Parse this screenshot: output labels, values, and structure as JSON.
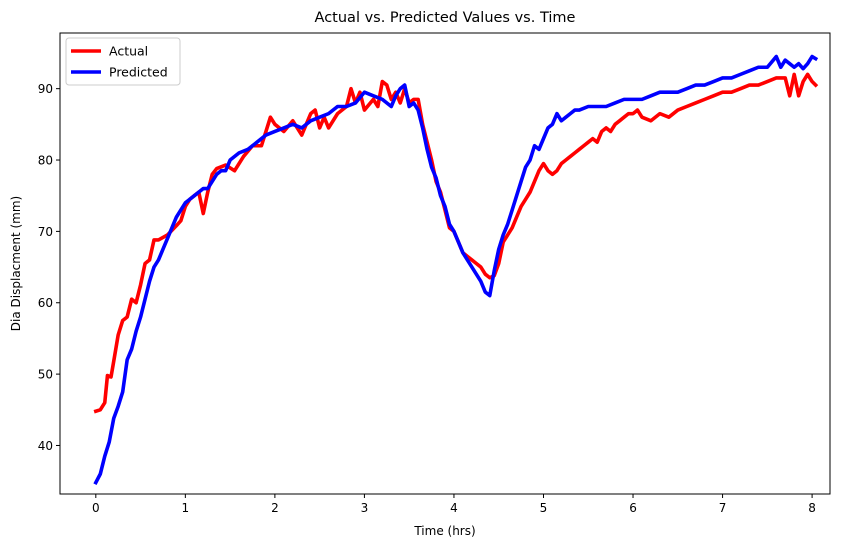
{
  "chart_data": {
    "type": "line",
    "title": "Actual vs. Predicted Values vs. Time",
    "xlabel": "Time (hrs)",
    "ylabel": "Dia Displacment (mm)",
    "xlim": [
      -0.4,
      8.2
    ],
    "ylim": [
      33.2,
      97.8
    ],
    "xticks": [
      0,
      1,
      2,
      3,
      4,
      5,
      6,
      7,
      8
    ],
    "xtick_labels": [
      "0",
      "1",
      "2",
      "3",
      "4",
      "5",
      "6",
      "7",
      "8"
    ],
    "yticks": [
      40,
      50,
      60,
      70,
      80,
      90
    ],
    "ytick_labels": [
      "40",
      "50",
      "60",
      "70",
      "80",
      "90"
    ],
    "grid": false,
    "legend_position": "top-left",
    "series": [
      {
        "name": "Actual",
        "color": "#ff0000",
        "x": [
          0,
          0.05,
          0.1,
          0.13,
          0.17,
          0.2,
          0.25,
          0.3,
          0.35,
          0.4,
          0.45,
          0.5,
          0.55,
          0.6,
          0.65,
          0.7,
          0.8,
          0.9,
          0.95,
          1.0,
          1.05,
          1.1,
          1.15,
          1.2,
          1.25,
          1.3,
          1.35,
          1.45,
          1.55,
          1.65,
          1.75,
          1.85,
          1.95,
          2.0,
          2.1,
          2.2,
          2.3,
          2.4,
          2.45,
          2.5,
          2.55,
          2.6,
          2.7,
          2.8,
          2.85,
          2.9,
          2.95,
          3.0,
          3.1,
          3.15,
          3.2,
          3.25,
          3.3,
          3.35,
          3.4,
          3.45,
          3.5,
          3.55,
          3.6,
          3.65,
          3.7,
          3.75,
          3.8,
          3.85,
          3.9,
          3.95,
          4.0,
          4.05,
          4.1,
          4.15,
          4.2,
          4.25,
          4.3,
          4.35,
          4.4,
          4.45,
          4.5,
          4.55,
          4.6,
          4.65,
          4.7,
          4.75,
          4.8,
          4.85,
          4.9,
          4.95,
          5.0,
          5.05,
          5.1,
          5.15,
          5.2,
          5.25,
          5.3,
          5.35,
          5.4,
          5.45,
          5.5,
          5.55,
          5.6,
          5.65,
          5.7,
          5.75,
          5.8,
          5.85,
          5.9,
          5.95,
          6.0,
          6.05,
          6.1,
          6.2,
          6.3,
          6.4,
          6.5,
          6.6,
          6.7,
          6.8,
          6.9,
          7.0,
          7.1,
          7.2,
          7.3,
          7.4,
          7.5,
          7.6,
          7.7,
          7.75,
          7.8,
          7.85,
          7.9,
          7.95,
          8.0,
          8.04
        ],
        "y": [
          44.8,
          45.0,
          46.0,
          49.8,
          49.6,
          51.8,
          55.5,
          57.5,
          58.0,
          60.5,
          60.0,
          62.5,
          65.5,
          66.0,
          68.8,
          68.8,
          69.5,
          70.8,
          71.5,
          73.5,
          74.5,
          75.0,
          75.5,
          72.5,
          75.5,
          78.0,
          78.8,
          79.3,
          78.5,
          80.5,
          82.0,
          82.0,
          86.0,
          85.0,
          84.0,
          85.5,
          83.5,
          86.5,
          87.0,
          84.5,
          86.0,
          84.5,
          86.5,
          87.5,
          90.0,
          88.0,
          89.5,
          87.0,
          88.5,
          87.5,
          91.0,
          90.5,
          88.5,
          89.5,
          88.0,
          90.0,
          88.0,
          88.5,
          88.5,
          85.0,
          82.5,
          80.0,
          77.0,
          75.5,
          73.0,
          70.5,
          70.0,
          68.5,
          67.0,
          66.5,
          66.0,
          65.5,
          65.0,
          64.0,
          63.5,
          63.8,
          65.5,
          68.5,
          69.5,
          70.5,
          72.0,
          73.5,
          74.5,
          75.5,
          77.0,
          78.5,
          79.5,
          78.5,
          78.0,
          78.5,
          79.5,
          80.0,
          80.5,
          81.0,
          81.5,
          82.0,
          82.5,
          83.0,
          82.5,
          84.0,
          84.5,
          84.0,
          85.0,
          85.5,
          86.0,
          86.5,
          86.5,
          87.0,
          86.0,
          85.5,
          86.5,
          86.0,
          87.0,
          87.5,
          88.0,
          88.5,
          89.0,
          89.5,
          89.5,
          90.0,
          90.5,
          90.5,
          91.0,
          91.5,
          91.5,
          89.0,
          92.0,
          89.0,
          91.0,
          92.0,
          91.0,
          90.5
        ]
      },
      {
        "name": "Predicted",
        "color": "#0000ff",
        "x": [
          0,
          0.05,
          0.1,
          0.15,
          0.2,
          0.25,
          0.3,
          0.35,
          0.4,
          0.45,
          0.5,
          0.55,
          0.6,
          0.65,
          0.7,
          0.75,
          0.8,
          0.85,
          0.9,
          0.95,
          1.0,
          1.05,
          1.1,
          1.15,
          1.2,
          1.25,
          1.3,
          1.35,
          1.4,
          1.45,
          1.5,
          1.6,
          1.7,
          1.8,
          1.9,
          2.0,
          2.1,
          2.2,
          2.3,
          2.4,
          2.5,
          2.6,
          2.7,
          2.8,
          2.9,
          3.0,
          3.1,
          3.2,
          3.3,
          3.35,
          3.4,
          3.45,
          3.5,
          3.55,
          3.6,
          3.65,
          3.7,
          3.75,
          3.8,
          3.85,
          3.9,
          3.95,
          4.0,
          4.05,
          4.1,
          4.15,
          4.2,
          4.25,
          4.3,
          4.35,
          4.4,
          4.45,
          4.5,
          4.55,
          4.6,
          4.65,
          4.7,
          4.75,
          4.8,
          4.85,
          4.9,
          4.95,
          5.0,
          5.05,
          5.1,
          5.15,
          5.2,
          5.25,
          5.3,
          5.35,
          5.4,
          5.5,
          5.6,
          5.7,
          5.8,
          5.9,
          6.0,
          6.1,
          6.2,
          6.3,
          6.4,
          6.5,
          6.6,
          6.7,
          6.8,
          6.9,
          7.0,
          7.1,
          7.2,
          7.3,
          7.4,
          7.5,
          7.6,
          7.65,
          7.7,
          7.75,
          7.8,
          7.85,
          7.9,
          7.95,
          8.0,
          8.04
        ],
        "y": [
          34.8,
          36.0,
          38.5,
          40.5,
          43.8,
          45.5,
          47.5,
          52.0,
          53.5,
          56.0,
          58.0,
          60.5,
          63.0,
          65.0,
          66.0,
          67.5,
          69.0,
          70.5,
          72.0,
          73.0,
          74.0,
          74.5,
          75.0,
          75.5,
          76.0,
          76.0,
          77.0,
          78.0,
          78.5,
          78.5,
          80.0,
          81.0,
          81.5,
          82.5,
          83.5,
          84.0,
          84.5,
          85.0,
          84.5,
          85.5,
          86.0,
          86.5,
          87.5,
          87.5,
          88.0,
          89.5,
          89.0,
          88.5,
          87.5,
          89.0,
          90.0,
          90.5,
          87.5,
          88.0,
          87.0,
          84.5,
          81.5,
          79.0,
          77.5,
          75.0,
          73.5,
          71.0,
          70.0,
          68.5,
          67.0,
          66.0,
          65.0,
          64.0,
          63.0,
          61.5,
          61.0,
          64.5,
          67.5,
          69.5,
          71.0,
          73.0,
          75.0,
          77.0,
          79.0,
          80.0,
          82.0,
          81.5,
          83.0,
          84.5,
          85.0,
          86.5,
          85.5,
          86.0,
          86.5,
          87.0,
          87.0,
          87.5,
          87.5,
          87.5,
          88.0,
          88.5,
          88.5,
          88.5,
          89.0,
          89.5,
          89.5,
          89.5,
          90.0,
          90.5,
          90.5,
          91.0,
          91.5,
          91.5,
          92.0,
          92.5,
          93.0,
          93.0,
          94.5,
          93.0,
          94.0,
          93.5,
          93.0,
          93.5,
          92.8,
          93.5,
          94.5,
          94.2
        ]
      }
    ]
  }
}
